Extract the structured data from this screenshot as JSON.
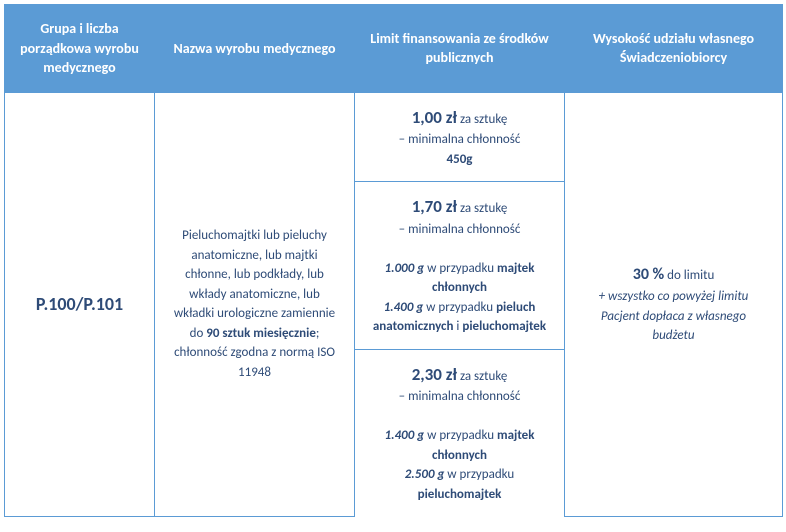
{
  "colors": {
    "header_bg": "#5b9bd5",
    "header_text": "#ffffff",
    "border": "#5b9bd5",
    "body_text": "#2e4b77"
  },
  "headers": {
    "col1": "Grupa i liczba porządkowa wyrobu medycznego",
    "col2": "Nazwa wyrobu medycznego",
    "col3": "Limit finansowania ze środków publicznych",
    "col4": "Wysokość udziału własnego Świadczeniobiorcy"
  },
  "code": "P.100/P.101",
  "description": {
    "pre": "Pieluchomajtki lub pieluchy anatomiczne, lub majtki chłonne, lub podkłady, lub wkłady anatomiczne, lub wkładki urologiczne zamiennie do ",
    "qty": "90 sztuk miesięcznie",
    "post": "; chłonność zgodna z normą ISO 11948"
  },
  "limits": {
    "b1": {
      "price": "1,00 zł",
      "per": " za sztukę",
      "line2": "– minimalna chłonność",
      "g": "450g"
    },
    "b2": {
      "price": "1,70 zł",
      "per": " za sztukę",
      "line2": "– minimalna chłonność",
      "g1": "1.000 g",
      "t1": " w przypadku ",
      "p1": "majtek chłonnych",
      "g2": "1.400 g",
      "t2": " w przypadku ",
      "p2": "pieluch anatomicznych",
      "and": " i ",
      "p3": "pieluchomajtek"
    },
    "b3": {
      "price": "2,30 zł",
      "per": " za sztukę",
      "line2": "– minimalna chłonność",
      "g1": "1.400 g",
      "t1": " w przypadku ",
      "p1": "majtek chłonnych",
      "g2": "2.500 g",
      "t2": " w przypadku ",
      "p2": "pieluchomajtek"
    }
  },
  "share": {
    "pct": "30 %",
    "txt1": " do limitu",
    "note": "+ wszystko co powyżej limitu Pacjent dopłaca z własnego budżetu"
  }
}
